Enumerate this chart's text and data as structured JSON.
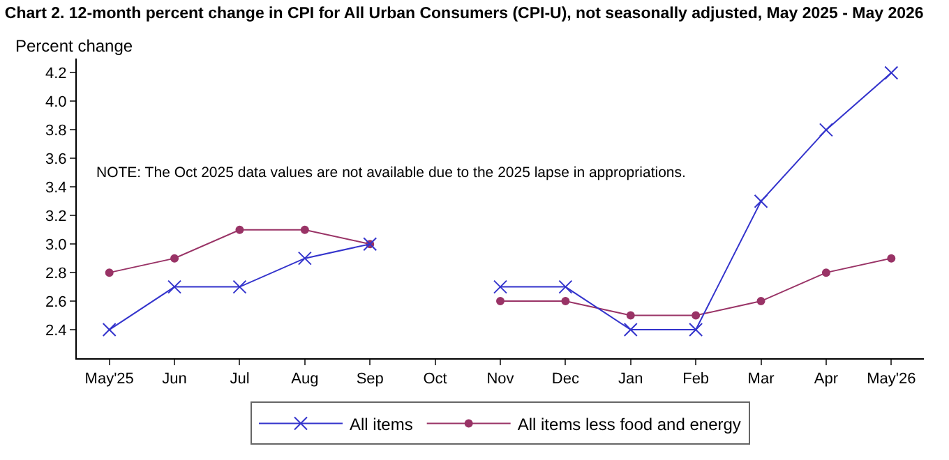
{
  "chart_data": {
    "type": "line",
    "title": "Chart 2. 12-month percent change in CPI for All Urban Consumers (CPI-U), not seasonally adjusted, May 2025 - May 2026",
    "ylabel": "Percent change",
    "categories": [
      "May'25",
      "Jun",
      "Jul",
      "Aug",
      "Sep",
      "Oct",
      "Nov",
      "Dec",
      "Jan",
      "Feb",
      "Mar",
      "Apr",
      "May'26"
    ],
    "series": [
      {
        "name": "All items",
        "color": "#3333cc",
        "marker": "cross",
        "values": [
          2.4,
          2.7,
          2.7,
          2.9,
          3.0,
          null,
          2.7,
          2.7,
          2.4,
          2.4,
          3.3,
          3.8,
          4.2
        ]
      },
      {
        "name": "All items less food and energy",
        "color": "#993366",
        "marker": "circle",
        "values": [
          2.8,
          2.9,
          3.1,
          3.1,
          3.0,
          null,
          2.6,
          2.6,
          2.5,
          2.5,
          2.6,
          2.8,
          2.9
        ]
      }
    ],
    "ylim": [
      2.2,
      4.3
    ],
    "yticks": [
      {
        "value": 2.4,
        "label": "2.4"
      },
      {
        "value": 2.6,
        "label": "2.6"
      },
      {
        "value": 2.8,
        "label": "2.8"
      },
      {
        "value": 3.0,
        "label": "3.0"
      },
      {
        "value": 3.2,
        "label": "3.2"
      },
      {
        "value": 3.4,
        "label": "3.4"
      },
      {
        "value": 3.6,
        "label": "3.6"
      },
      {
        "value": 3.8,
        "label": "3.8"
      },
      {
        "value": 4.0,
        "label": "4.0"
      },
      {
        "value": 4.2,
        "label": "4.2"
      }
    ],
    "annotations": [
      "NOTE: The Oct 2025 data values are not available due to the 2025 lapse in appropriations."
    ],
    "grid": false,
    "legend": "bottom",
    "line_style": "solid"
  }
}
